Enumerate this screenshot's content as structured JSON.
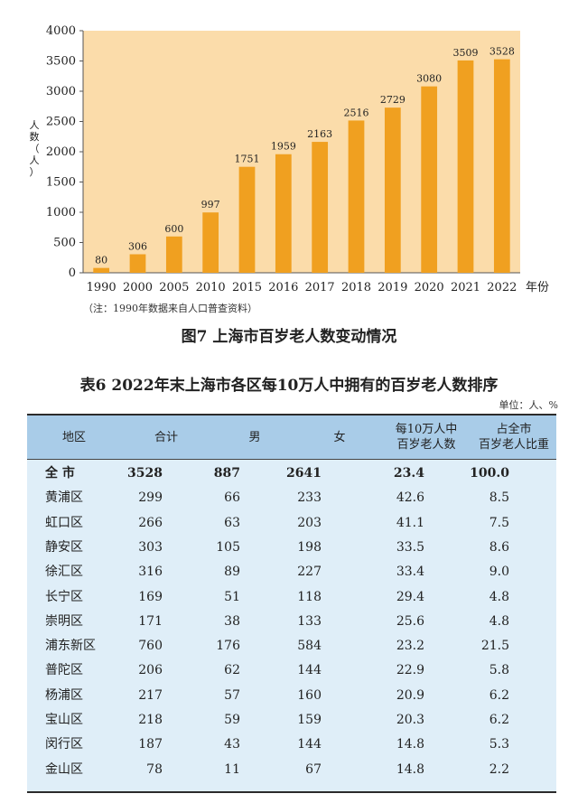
{
  "chart_data": {
    "type": "bar",
    "categories": [
      "1990",
      "2000",
      "2005",
      "2010",
      "2015",
      "2016",
      "2017",
      "2018",
      "2019",
      "2020",
      "2021",
      "2022"
    ],
    "values": [
      80,
      306,
      600,
      997,
      1751,
      1959,
      2163,
      2516,
      2729,
      3080,
      3509,
      3528
    ],
    "ylim": [
      0,
      4000
    ],
    "yticks": [
      0,
      500,
      1000,
      1500,
      2000,
      2500,
      3000,
      3500,
      4000
    ],
    "ylabel": "人数（人）",
    "xlabel": "年份",
    "bar_color": "#f0a020",
    "plot_bg": "#fbdcaa"
  },
  "chart_note": "（注：1990年数据来自人口普查资料）",
  "figure_title": "图7  上海市百岁老人数变动情况",
  "table": {
    "title": "表6  2022年末上海市各区每10万人中拥有的百岁老人数排序",
    "unit": "单位：人、%",
    "headers": [
      {
        "lines": [
          "地区"
        ]
      },
      {
        "lines": [
          "合计"
        ]
      },
      {
        "lines": [
          "男"
        ]
      },
      {
        "lines": [
          "女"
        ]
      },
      {
        "lines": [
          "每10万人中",
          "百岁老人数"
        ]
      },
      {
        "lines": [
          "占全市",
          "百岁老人比重"
        ]
      }
    ],
    "rows": [
      {
        "name": "全  市",
        "total": "3528",
        "male": "887",
        "female": "2641",
        "per100k": "23.4",
        "share": "100.0"
      },
      {
        "name": "黄浦区",
        "total": "299",
        "male": "66",
        "female": "233",
        "per100k": "42.6",
        "share": "8.5"
      },
      {
        "name": "虹口区",
        "total": "266",
        "male": "63",
        "female": "203",
        "per100k": "41.1",
        "share": "7.5"
      },
      {
        "name": "静安区",
        "total": "303",
        "male": "105",
        "female": "198",
        "per100k": "33.5",
        "share": "8.6"
      },
      {
        "name": "徐汇区",
        "total": "316",
        "male": "89",
        "female": "227",
        "per100k": "33.4",
        "share": "9.0"
      },
      {
        "name": "长宁区",
        "total": "169",
        "male": "51",
        "female": "118",
        "per100k": "29.4",
        "share": "4.8"
      },
      {
        "name": "崇明区",
        "total": "171",
        "male": "38",
        "female": "133",
        "per100k": "25.6",
        "share": "4.8"
      },
      {
        "name": "浦东新区",
        "total": "760",
        "male": "176",
        "female": "584",
        "per100k": "23.2",
        "share": "21.5"
      },
      {
        "name": "普陀区",
        "total": "206",
        "male": "62",
        "female": "144",
        "per100k": "22.9",
        "share": "5.8"
      },
      {
        "name": "杨浦区",
        "total": "217",
        "male": "57",
        "female": "160",
        "per100k": "20.9",
        "share": "6.2"
      },
      {
        "name": "宝山区",
        "total": "218",
        "male": "59",
        "female": "159",
        "per100k": "20.3",
        "share": "6.2"
      },
      {
        "name": "闵行区",
        "total": "187",
        "male": "43",
        "female": "144",
        "per100k": "14.8",
        "share": "5.3"
      },
      {
        "name": "金山区",
        "total": "78",
        "male": "11",
        "female": "67",
        "per100k": "14.8",
        "share": "2.2"
      }
    ]
  }
}
